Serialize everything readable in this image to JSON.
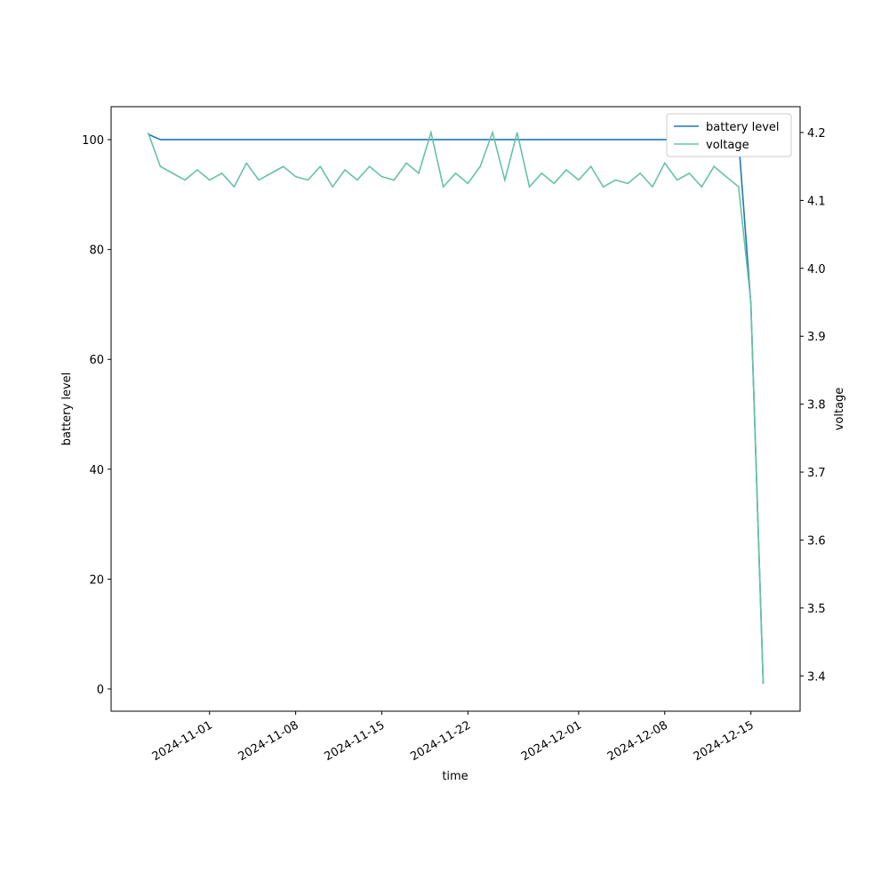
{
  "chart_data": {
    "type": "line",
    "x_label": "time",
    "y_label": "battery level",
    "y2_label": "voltage",
    "x": [
      "2024-10-27",
      "2024-10-28",
      "2024-10-29",
      "2024-10-30",
      "2024-10-31",
      "2024-11-01",
      "2024-11-02",
      "2024-11-03",
      "2024-11-04",
      "2024-11-05",
      "2024-11-06",
      "2024-11-07",
      "2024-11-08",
      "2024-11-09",
      "2024-11-10",
      "2024-11-11",
      "2024-11-12",
      "2024-11-13",
      "2024-11-14",
      "2024-11-15",
      "2024-11-16",
      "2024-11-17",
      "2024-11-18",
      "2024-11-19",
      "2024-11-20",
      "2024-11-21",
      "2024-11-22",
      "2024-11-23",
      "2024-11-24",
      "2024-11-25",
      "2024-11-26",
      "2024-11-27",
      "2024-11-28",
      "2024-11-29",
      "2024-11-30",
      "2024-12-01",
      "2024-12-02",
      "2024-12-03",
      "2024-12-04",
      "2024-12-05",
      "2024-12-06",
      "2024-12-07",
      "2024-12-08",
      "2024-12-09",
      "2024-12-10",
      "2024-12-11",
      "2024-12-12",
      "2024-12-13",
      "2024-12-14",
      "2024-12-15",
      "2024-12-16"
    ],
    "series": [
      {
        "name": "battery level",
        "color": "#1f77b4",
        "axis": "y",
        "values": [
          101,
          100,
          100,
          100,
          100,
          100,
          100,
          100,
          100,
          100,
          100,
          100,
          100,
          100,
          100,
          100,
          100,
          100,
          100,
          100,
          100,
          100,
          100,
          100,
          100,
          100,
          100,
          100,
          100,
          100,
          100,
          100,
          100,
          100,
          100,
          100,
          100,
          100,
          100,
          100,
          100,
          100,
          100,
          100,
          100,
          100,
          100,
          100,
          100,
          70,
          1
        ]
      },
      {
        "name": "voltage",
        "color": "#66c2a5",
        "axis": "y2",
        "values": [
          4.2,
          4.15,
          4.14,
          4.13,
          4.145,
          4.13,
          4.14,
          4.12,
          4.155,
          4.13,
          4.14,
          4.15,
          4.135,
          4.13,
          4.15,
          4.12,
          4.145,
          4.13,
          4.15,
          4.135,
          4.13,
          4.155,
          4.14,
          4.2,
          4.12,
          4.14,
          4.125,
          4.15,
          4.2,
          4.13,
          4.2,
          4.12,
          4.14,
          4.125,
          4.145,
          4.13,
          4.15,
          4.12,
          4.13,
          4.125,
          4.14,
          4.12,
          4.155,
          4.13,
          4.14,
          4.12,
          4.15,
          4.135,
          4.12,
          3.95,
          3.39
        ]
      }
    ],
    "xlim": [
      "2024-10-24",
      "2024-12-19"
    ],
    "xticks": [
      "2024-11-01",
      "2024-11-08",
      "2024-11-15",
      "2024-11-22",
      "2024-12-01",
      "2024-12-08",
      "2024-12-15"
    ],
    "ylim": [
      -4.05,
      106.0
    ],
    "yticks": [
      0,
      20,
      40,
      60,
      80,
      100
    ],
    "y2lim": [
      3.348,
      4.238
    ],
    "y2ticks": [
      3.4,
      3.5,
      3.6,
      3.7,
      3.8,
      3.9,
      {
        "value": 4,
        "label": "4.0"
      },
      4.1,
      4.2
    ],
    "legend": "upper right"
  }
}
